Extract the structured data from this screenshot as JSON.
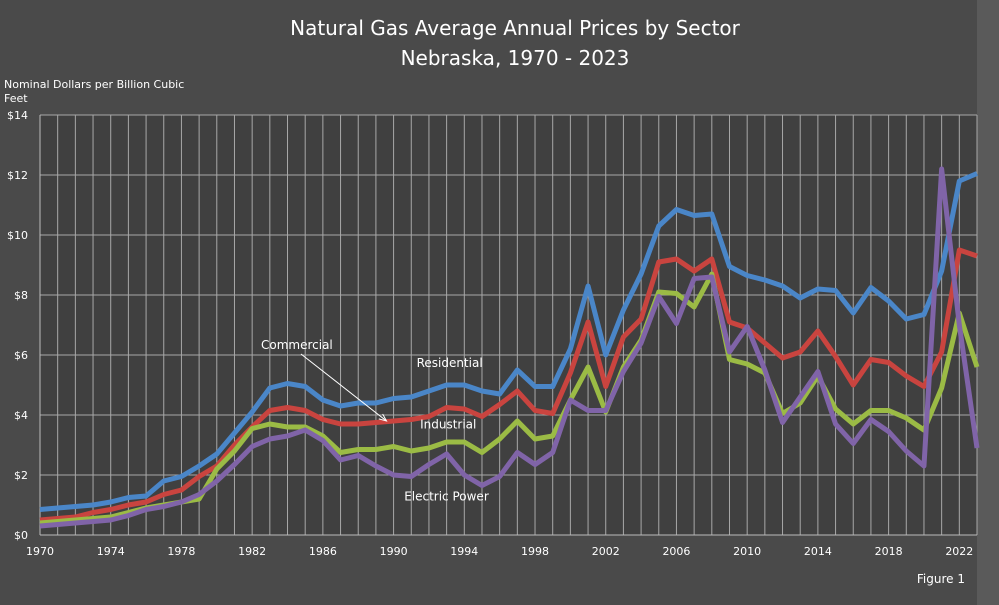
{
  "chart_data": {
    "type": "line",
    "title": "Natural Gas Average Annual Prices by Sector",
    "subtitle": "Nebraska, 1970 - 2023",
    "ylabel": "Nominal Dollars per Billion Cubic Feet",
    "xlabel": "",
    "xlim": [
      1970,
      2023
    ],
    "ylim": [
      0,
      14
    ],
    "yticks": [
      "$0",
      "$2",
      "$4",
      "$6",
      "$8",
      "$10",
      "$12",
      "$14"
    ],
    "xticks": [
      "1970",
      "1974",
      "1978",
      "1982",
      "1986",
      "1990",
      "1994",
      "1998",
      "2002",
      "2006",
      "2010",
      "2014",
      "2018",
      "2022"
    ],
    "grid": true,
    "x_start": 1970,
    "series": [
      {
        "name": "Commercial",
        "color": "#4a86c8",
        "values": [
          0.85,
          0.9,
          0.95,
          1.0,
          1.1,
          1.25,
          1.3,
          1.8,
          1.95,
          2.3,
          2.7,
          3.4,
          4.1,
          4.9,
          5.05,
          4.95,
          4.5,
          4.3,
          4.4,
          4.4,
          4.55,
          4.6,
          4.8,
          5.0,
          5.0,
          4.8,
          4.7,
          5.5,
          4.95,
          4.95,
          6.2,
          8.3,
          6.0,
          7.5,
          8.7,
          10.3,
          10.85,
          10.65,
          10.7,
          8.95,
          8.65,
          8.5,
          8.3,
          7.9,
          8.2,
          8.15,
          7.4,
          8.25,
          7.8,
          7.2,
          7.35,
          8.8,
          11.8,
          12.05
        ]
      },
      {
        "name": "Residential",
        "color": "#c9443f",
        "values": [
          0.5,
          0.55,
          0.6,
          0.75,
          0.85,
          1.0,
          1.1,
          1.35,
          1.5,
          1.95,
          2.3,
          3.0,
          3.6,
          4.15,
          4.25,
          4.15,
          3.85,
          3.7,
          3.7,
          3.75,
          3.8,
          3.85,
          3.95,
          4.25,
          4.2,
          3.95,
          4.35,
          4.8,
          4.15,
          4.05,
          5.4,
          7.1,
          4.95,
          6.6,
          7.2,
          9.1,
          9.2,
          8.8,
          9.2,
          7.1,
          6.9,
          6.4,
          5.9,
          6.1,
          6.8,
          5.95,
          5.0,
          5.85,
          5.75,
          5.3,
          4.95,
          6.1,
          9.5,
          9.3
        ]
      },
      {
        "name": "Industrial",
        "color": "#9bbb45",
        "values": [
          0.4,
          0.45,
          0.5,
          0.55,
          0.6,
          0.75,
          0.9,
          1.0,
          1.1,
          1.2,
          2.2,
          2.8,
          3.55,
          3.7,
          3.6,
          3.6,
          3.3,
          2.75,
          2.85,
          2.85,
          2.95,
          2.8,
          2.9,
          3.1,
          3.1,
          2.75,
          3.2,
          3.8,
          3.2,
          3.3,
          4.5,
          5.6,
          4.1,
          5.6,
          6.5,
          8.1,
          8.05,
          7.6,
          8.7,
          5.85,
          5.7,
          5.4,
          4.05,
          4.4,
          5.3,
          4.2,
          3.7,
          4.15,
          4.15,
          3.9,
          3.5,
          4.9,
          7.4,
          5.6
        ]
      },
      {
        "name": "Electric Power",
        "color": "#8064a8",
        "values": [
          0.3,
          0.35,
          0.4,
          0.45,
          0.5,
          0.65,
          0.85,
          0.95,
          1.1,
          1.35,
          1.8,
          2.35,
          2.95,
          3.2,
          3.3,
          3.5,
          3.15,
          2.5,
          2.65,
          2.3,
          2.0,
          1.95,
          2.35,
          2.7,
          2.0,
          1.65,
          1.95,
          2.75,
          2.35,
          2.75,
          4.5,
          4.15,
          4.15,
          5.45,
          6.4,
          7.95,
          7.05,
          8.55,
          8.6,
          6.1,
          6.95,
          5.5,
          3.75,
          4.6,
          5.45,
          3.7,
          3.05,
          3.85,
          3.45,
          2.8,
          2.3,
          12.2,
          7.0,
          2.9
        ]
      }
    ],
    "annotations": [
      {
        "text": "Commercial",
        "x": 1982.5,
        "y": 6.2,
        "arrow_to": [
          1989.6,
          3.8
        ]
      },
      {
        "text": "Residential",
        "x": 1991.3,
        "y": 5.6
      },
      {
        "text": "Industrial",
        "x": 1991.5,
        "y": 3.55
      },
      {
        "text": "Electric Power",
        "x": 1990.6,
        "y": 1.15
      }
    ],
    "footnote": "Figure 1"
  }
}
